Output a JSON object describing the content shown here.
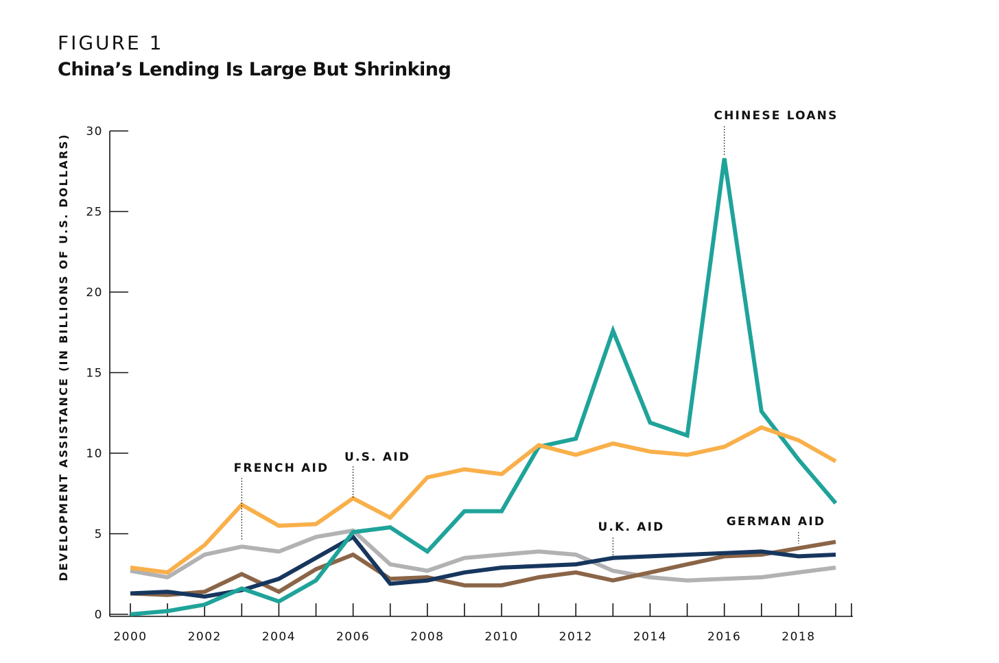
{
  "figure": {
    "label": "FIGURE 1",
    "title": "China’s Lending Is Large But Shrinking"
  },
  "colors": {
    "chinese_loans": "#1fa39a",
    "us_aid": "#f9b04a",
    "uk_aid": "#16365e",
    "german_aid": "#8b6547",
    "french_aid": "#b2b2b4",
    "axis": "#111111"
  },
  "chart_data": {
    "type": "line",
    "title": "China’s Lending Is Large But Shrinking",
    "ylabel": "DEVELOPMENT ASSISTANCE (IN BILLIONS OF U.S. DOLLARS)",
    "xlabel": "",
    "x": [
      2000,
      2001,
      2002,
      2003,
      2004,
      2005,
      2006,
      2007,
      2008,
      2009,
      2010,
      2011,
      2012,
      2013,
      2014,
      2015,
      2016,
      2017,
      2018,
      2019
    ],
    "xlim": [
      2000,
      2019
    ],
    "ylim": [
      0,
      30
    ],
    "xticks": [
      2000,
      2001,
      2002,
      2003,
      2004,
      2005,
      2006,
      2007,
      2008,
      2009,
      2010,
      2011,
      2012,
      2013,
      2014,
      2015,
      2016,
      2017,
      2018,
      2019
    ],
    "xtick_labels": [
      "2000",
      "2002",
      "2004",
      "2006",
      "2008",
      "2010",
      "2012",
      "2014",
      "2016",
      "2018"
    ],
    "xtick_label_years": [
      2000,
      2002,
      2004,
      2006,
      2008,
      2010,
      2012,
      2014,
      2016,
      2018
    ],
    "yticks": [
      0,
      5,
      10,
      15,
      20,
      25,
      30
    ],
    "ytick_labels": [
      "0",
      "5",
      "10",
      "15",
      "20",
      "25",
      "30"
    ],
    "grid": false,
    "series": [
      {
        "key": "french_aid",
        "name": "FRENCH AID",
        "values": [
          2.7,
          2.3,
          3.7,
          4.2,
          3.9,
          4.8,
          5.2,
          3.1,
          2.7,
          3.5,
          3.7,
          3.9,
          3.7,
          2.7,
          2.3,
          2.1,
          2.2,
          2.3,
          2.6,
          2.9
        ]
      },
      {
        "key": "german_aid",
        "name": "GERMAN AID",
        "values": [
          1.3,
          1.2,
          1.4,
          2.5,
          1.4,
          2.8,
          3.7,
          2.2,
          2.3,
          1.8,
          1.8,
          2.3,
          2.6,
          2.1,
          2.6,
          3.1,
          3.6,
          3.7,
          4.1,
          4.5
        ]
      },
      {
        "key": "uk_aid",
        "name": "U.K. AID",
        "values": [
          1.3,
          1.4,
          1.1,
          1.5,
          2.2,
          3.5,
          4.8,
          1.9,
          2.1,
          2.6,
          2.9,
          3.0,
          3.1,
          3.5,
          3.6,
          3.7,
          3.8,
          3.9,
          3.6,
          3.7
        ]
      },
      {
        "key": "chinese_loans",
        "name": "CHINESE LOANS",
        "values": [
          0.0,
          0.2,
          0.6,
          1.6,
          0.8,
          2.1,
          5.1,
          5.4,
          3.9,
          6.4,
          6.4,
          10.4,
          10.9,
          17.6,
          11.9,
          11.1,
          28.3,
          12.6,
          9.6,
          6.9
        ]
      },
      {
        "key": "us_aid",
        "name": "U.S. AID",
        "values": [
          2.9,
          2.6,
          4.3,
          6.8,
          5.5,
          5.6,
          7.2,
          6.0,
          8.5,
          9.0,
          8.7,
          10.5,
          9.9,
          10.6,
          10.1,
          9.9,
          10.4,
          11.6,
          10.8,
          9.5
        ]
      }
    ],
    "annotations": [
      {
        "text": "FRENCH AID",
        "series": "french_aid",
        "x": 2003
      },
      {
        "text": "U.S. AID",
        "series": "us_aid",
        "x": 2006
      },
      {
        "text": "U.K. AID",
        "series": "uk_aid",
        "x": 2013
      },
      {
        "text": "GERMAN AID",
        "series": "german_aid",
        "x": 2018
      },
      {
        "text": "CHINESE LOANS",
        "series": "chinese_loans",
        "x": 2016
      }
    ]
  }
}
